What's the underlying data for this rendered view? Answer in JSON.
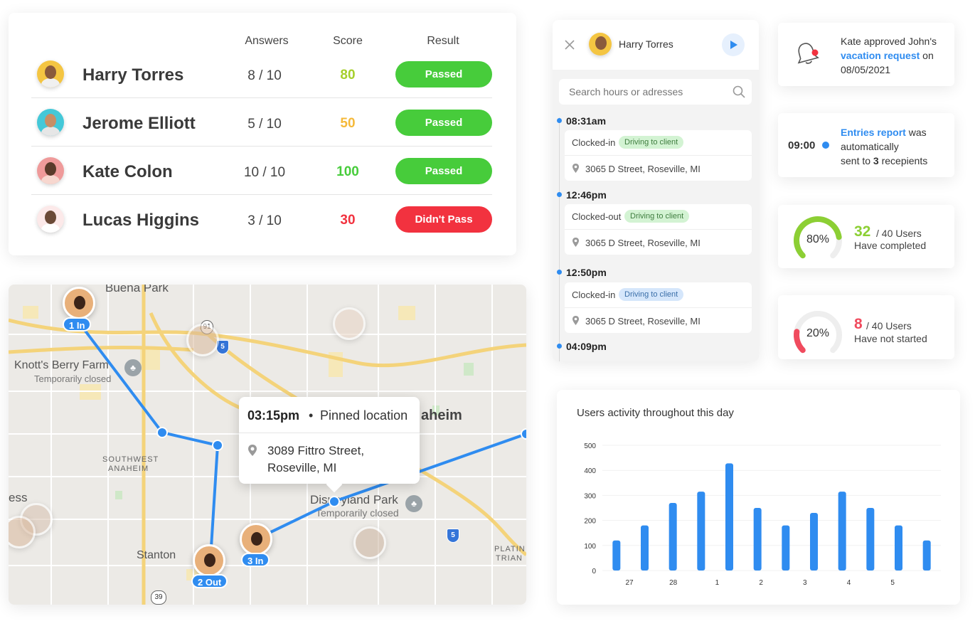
{
  "score_table": {
    "headers": {
      "answers": "Answers",
      "score": "Score",
      "result": "Result"
    },
    "rows": [
      {
        "name": "Harry Torres",
        "answers": "8 / 10",
        "score": "80",
        "result": "Passed",
        "score_color": "#a6cf2c",
        "result_color": "#47cc3b"
      },
      {
        "name": "Jerome Elliott",
        "answers": "5 / 10",
        "score": "50",
        "result": "Passed",
        "score_color": "#f5b93a",
        "result_color": "#47cc3b"
      },
      {
        "name": "Kate Colon",
        "answers": "10 / 10",
        "score": "100",
        "result": "Passed",
        "score_color": "#47cc3b",
        "result_color": "#47cc3b"
      },
      {
        "name": "Lucas Higgins",
        "answers": "3 / 10",
        "score": "30",
        "result": "Didn't Pass",
        "score_color": "#f2323f",
        "result_color": "#f2323f"
      }
    ]
  },
  "map": {
    "labels": {
      "buena_park": "Buena Park",
      "knotts": "Knott's Berry Farm",
      "knotts_closed": "Temporarily closed",
      "anaheim": "aheim",
      "southwest_anaheim_1": "SOUTHWEST",
      "southwest_anaheim_2": "ANAHEIM",
      "ess": "ess",
      "disneyland": "Disneyland Park",
      "disney_closed": "Temporarily closed",
      "stanton": "Stanton",
      "platin_1": "PLATIN",
      "platin_2": "TRIAN"
    },
    "shields": {
      "r91": "91",
      "r5a": "5",
      "r5b": "5",
      "r39": "39"
    },
    "pins": {
      "p1": "1 In",
      "p2": "2 Out",
      "p3": "3 In"
    },
    "popup": {
      "time": "03:15pm",
      "bullet": "•",
      "label": "Pinned location",
      "address_line1": "3089  Fittro Street,",
      "address_line2": "Roseville, MI"
    }
  },
  "timeline": {
    "user": "Harry Torres",
    "search_placeholder": "Search hours or adresses",
    "entries": [
      {
        "time": "08:31am",
        "status": "Clocked-in",
        "badge": "Driving to client",
        "address": "3065  D Street, Roseville, MI"
      },
      {
        "time": "12:46pm",
        "status": "Clocked-out",
        "badge": "Driving to client",
        "address": "3065  D Street, Roseville, MI"
      },
      {
        "time": "12:50pm",
        "status": "Clocked-in",
        "badge": "Driving to client",
        "address": "3065  D Street, Roseville, MI"
      }
    ],
    "last_time": "04:09pm"
  },
  "notifications": {
    "approval": {
      "pre": "Kate approved John's",
      "link": "vacation request",
      "post": "on",
      "date": "08/05/2021"
    },
    "report": {
      "time": "09:00",
      "link": "Entries report",
      "post": "was",
      "line2": "automatically",
      "line3_pre": "sent to",
      "count": "3",
      "line3_post": "recepients"
    }
  },
  "stats": {
    "completed": {
      "percent_label": "80%",
      "fraction": 0.8,
      "count": "32",
      "total": "/ 40 Users",
      "desc": "Have completed",
      "color": "#8ccf34"
    },
    "not_started": {
      "percent_label": "20%",
      "fraction": 0.2,
      "count": "8",
      "total": "/ 40 Users",
      "desc": "Have not started",
      "color": "#f04b5e"
    }
  },
  "chart_data": {
    "type": "bar",
    "title": "Users activity throughout this day",
    "ylim": [
      0,
      500
    ],
    "yticks": [
      0,
      100,
      200,
      300,
      400,
      500
    ],
    "values": [
      120,
      180,
      270,
      315,
      428,
      250,
      180,
      230,
      315,
      250,
      180,
      120
    ],
    "xtick_labels": [
      "27",
      "28",
      "1",
      "2",
      "3",
      "4",
      "5"
    ],
    "color": "#2f8cf0",
    "grid": true
  }
}
